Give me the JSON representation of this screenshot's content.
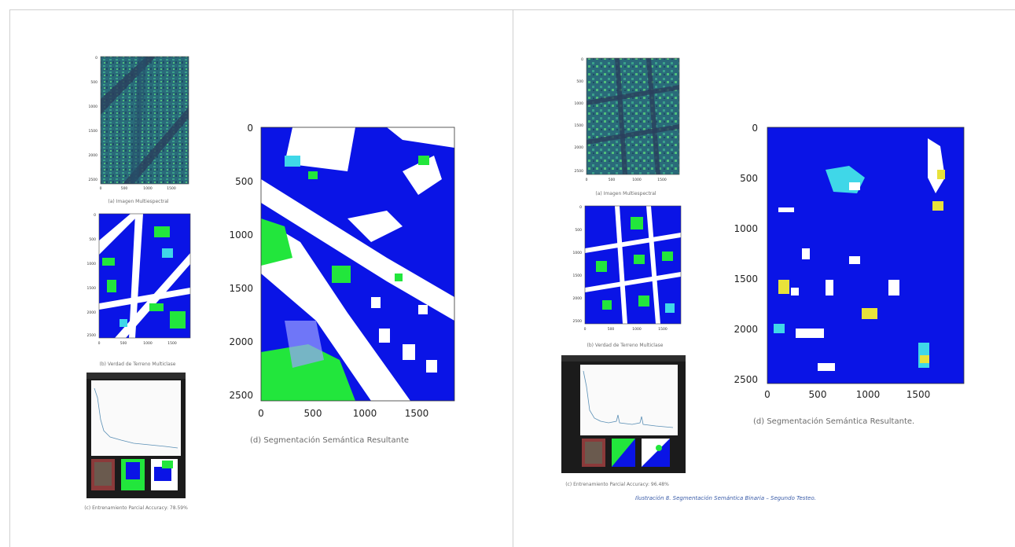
{
  "left": {
    "caption_a": "(a) Imagen Multiespectral",
    "caption_b": "(b) Verdad de Terreno Multiclase",
    "caption_c": "(c) Entrenamiento Parcial Accuracy: 78.59%",
    "caption_d": "(d) Segmentación Semántica Resultante",
    "big_y_ticks": [
      "0",
      "500",
      "1000",
      "1500",
      "2000",
      "2500"
    ],
    "big_x_ticks": [
      "0",
      "500",
      "1000",
      "1500"
    ],
    "small_y_ticks": [
      "0",
      "500",
      "1000",
      "1500",
      "2000",
      "2500"
    ],
    "small_x_ticks": [
      "0",
      "500",
      "1000",
      "1500"
    ]
  },
  "right": {
    "caption_a": "(a) Imagen Multiespectral",
    "caption_b": "(b) Verdad de Terreno Multiclase",
    "caption_c": "(c) Entrenamiento Parcial Accuracy: 96.48%",
    "caption_d": "(d) Segmentación Semántica Resultante.",
    "figure_caption": "Ilustración 8. Segmentación Semántica Binaria – Segundo Testeo.",
    "big_y_ticks": [
      "0",
      "500",
      "1000",
      "1500",
      "2000",
      "2500"
    ],
    "big_x_ticks": [
      "0",
      "500",
      "1000",
      "1500"
    ],
    "small_y_ticks": [
      "0",
      "500",
      "1000",
      "1500",
      "2000",
      "2500"
    ],
    "small_x_ticks": [
      "0",
      "500",
      "1000",
      "1500"
    ]
  },
  "colors": {
    "building_blue": "#0a14e6",
    "road_white": "#ffffff",
    "vegetation_green": "#22e63c",
    "water_cyan": "#3fd7e8",
    "yellow": "#e8e23a",
    "viridis_dark": "#2c5f73",
    "viridis_teal": "#2b8c8c",
    "figure_caption_color": "#3a5ca8"
  }
}
